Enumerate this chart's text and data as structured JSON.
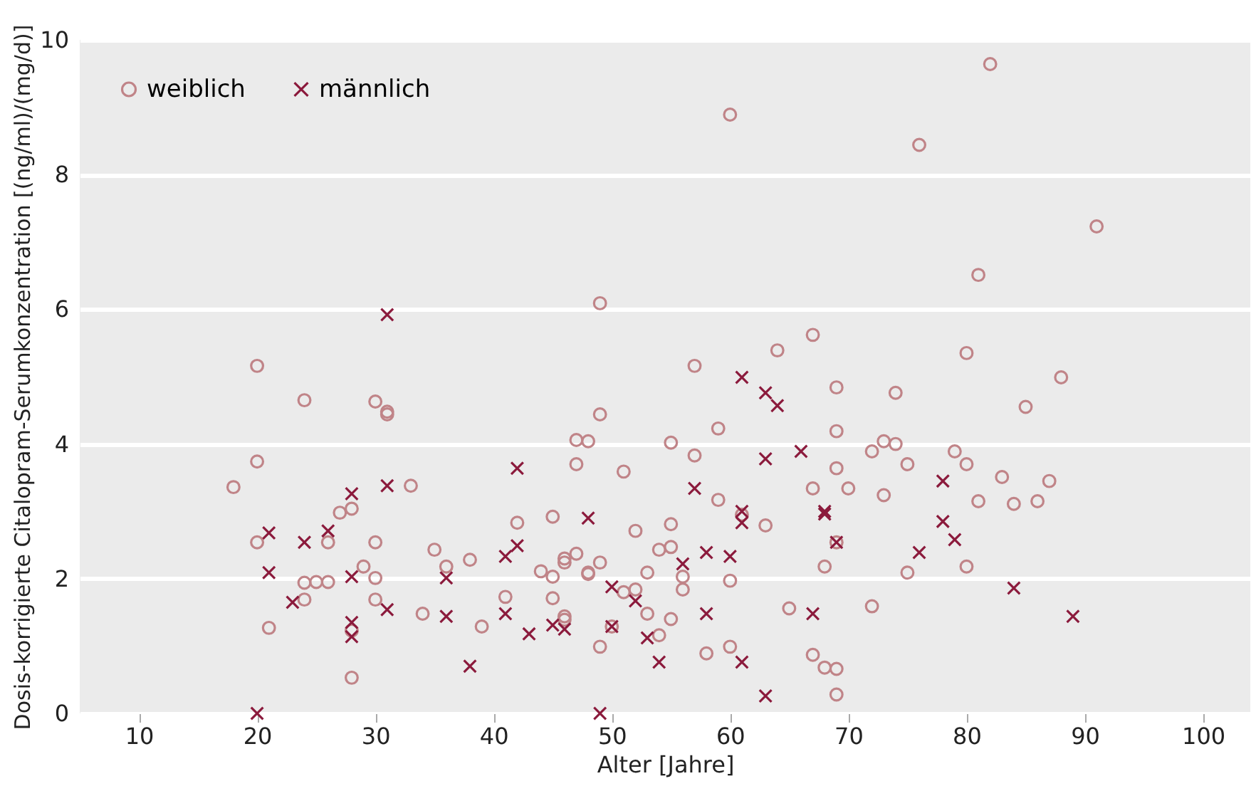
{
  "chart_data": {
    "type": "scatter",
    "xlabel": "Alter [Jahre]",
    "ylabel": "Dosis-korrigierte Citalopram-Serumkonzentration [(ng/ml)/(mg/d)]",
    "xlim": [
      5,
      104
    ],
    "xticks": [
      10,
      20,
      30,
      40,
      50,
      60,
      70,
      80,
      90,
      100
    ],
    "ylim": [
      0,
      10
    ],
    "yticks": [
      0,
      2,
      4,
      6,
      8,
      10
    ],
    "grid": "y",
    "legend": "top left",
    "series": [
      {
        "name": "weiblich",
        "color": "#c08488",
        "marker": "circle",
        "x": [
          18,
          20,
          20,
          20,
          24,
          24,
          24,
          21,
          25,
          26,
          26,
          27,
          28,
          28,
          28,
          29,
          30,
          30,
          30,
          30,
          31,
          31,
          33,
          35,
          36,
          34,
          38,
          39,
          41,
          42,
          44,
          45,
          45,
          45,
          46,
          46,
          46,
          46,
          47,
          47,
          47,
          48,
          48,
          48,
          49,
          49,
          49,
          50,
          51,
          51,
          52,
          52,
          53,
          53,
          54,
          54,
          55,
          55,
          55,
          55,
          56,
          56,
          57,
          57,
          58,
          59,
          59,
          60,
          60,
          61,
          63,
          64,
          65,
          67,
          67,
          68,
          68,
          69,
          69,
          69,
          69,
          69,
          69,
          70,
          60,
          49,
          67,
          82,
          76,
          91,
          81,
          80,
          88,
          74,
          85,
          73,
          74,
          72,
          79,
          75,
          80,
          83,
          87,
          73,
          81,
          84,
          86,
          75,
          80,
          72
        ],
        "values": [
          3.36,
          5.16,
          3.74,
          2.54,
          4.65,
          1.94,
          1.69,
          1.27,
          1.95,
          1.95,
          2.54,
          2.98,
          3.04,
          0.53,
          1.23,
          2.18,
          2.54,
          2.01,
          1.69,
          4.63,
          4.48,
          4.44,
          3.38,
          2.43,
          2.18,
          1.48,
          2.28,
          1.29,
          1.73,
          2.83,
          2.11,
          2.92,
          2.03,
          1.71,
          2.3,
          2.24,
          1.44,
          1.39,
          2.37,
          4.06,
          3.7,
          4.04,
          2.09,
          2.07,
          4.44,
          2.24,
          0.99,
          1.29,
          3.59,
          1.8,
          2.71,
          1.84,
          2.09,
          1.48,
          2.43,
          1.16,
          4.02,
          2.81,
          2.47,
          1.4,
          2.03,
          1.84,
          5.16,
          3.83,
          0.89,
          4.23,
          3.17,
          1.97,
          0.99,
          2.95,
          2.79,
          5.39,
          1.56,
          3.34,
          0.87,
          2.18,
          0.68,
          4.84,
          4.19,
          3.64,
          2.54,
          0.66,
          0.28,
          3.34,
          8.89,
          6.09,
          5.62,
          9.64,
          8.44,
          7.23,
          6.51,
          5.35,
          4.99,
          4.76,
          4.55,
          4.04,
          4.0,
          3.89,
          3.89,
          3.7,
          3.7,
          3.51,
          3.45,
          3.24,
          3.15,
          3.11,
          3.15,
          2.09,
          2.18,
          1.59
        ]
      },
      {
        "name": "männlich",
        "color": "#8b1a3c",
        "marker": "cross",
        "x": [
          31,
          31,
          28,
          21,
          24,
          26,
          21,
          28,
          23,
          31,
          28,
          28,
          36,
          36,
          38,
          20,
          42,
          42,
          41,
          48,
          41,
          43,
          45,
          46,
          50,
          50,
          52,
          53,
          54,
          56,
          57,
          58,
          58,
          60,
          61,
          61,
          61,
          61,
          63,
          64,
          63,
          63,
          66,
          68,
          68,
          69,
          67,
          49,
          78,
          78,
          79,
          76,
          84,
          89
        ],
        "values": [
          5.92,
          3.38,
          3.26,
          2.68,
          2.54,
          2.71,
          2.09,
          2.03,
          1.65,
          1.54,
          1.35,
          1.14,
          2.01,
          1.44,
          0.7,
          0,
          3.64,
          2.49,
          2.33,
          2.9,
          1.48,
          1.18,
          1.31,
          1.25,
          1.88,
          1.29,
          1.67,
          1.12,
          0.76,
          2.22,
          3.34,
          2.39,
          1.48,
          2.33,
          4.99,
          3.0,
          2.83,
          0.76,
          4.76,
          4.57,
          3.78,
          0.26,
          3.89,
          3.0,
          2.96,
          2.54,
          1.48,
          0,
          3.45,
          2.85,
          2.58,
          2.39,
          1.86,
          1.44
        ]
      }
    ]
  }
}
